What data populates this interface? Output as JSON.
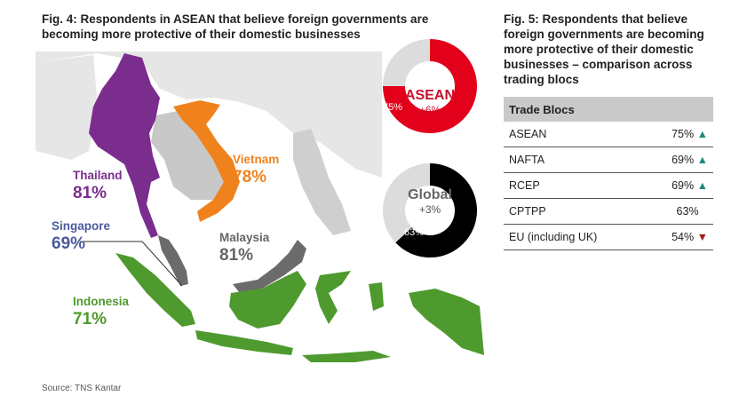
{
  "fig4": {
    "title_line1": "Fig. 4: Respondents in ASEAN that believe foreign governments are",
    "title_line2": "becoming more protective of their domestic businesses",
    "countries": [
      {
        "name": "Thailand",
        "value": "81%",
        "color": "#7b2d8e"
      },
      {
        "name": "Vietnam",
        "value": "78%",
        "color": "#f0821e"
      },
      {
        "name": "Singapore",
        "value": "69%",
        "color": "#4a5a9c"
      },
      {
        "name": "Malaysia",
        "value": "81%",
        "color": "#6b6b6b"
      },
      {
        "name": "Indonesia",
        "value": "71%",
        "color": "#4e9a2e"
      }
    ],
    "donuts": [
      {
        "label": "ASEAN",
        "change": "+6%",
        "value_label": "75%",
        "value": 75,
        "color": "#e2001a"
      },
      {
        "label": "Global",
        "change": "+3%",
        "value_label": "63%",
        "value": 63,
        "color": "#000000"
      }
    ],
    "source": "Source: TNS Kantar"
  },
  "fig5": {
    "title_lines": [
      "Fig. 5: Respondents that believe",
      "foreign governments are becoming",
      "more protective of their domestic",
      "businesses – comparison across",
      "trading blocs"
    ],
    "header": "Trade Blocs",
    "rows": [
      {
        "bloc": "ASEAN",
        "value": "75%",
        "trend": "up"
      },
      {
        "bloc": "NAFTA",
        "value": "69%",
        "trend": "up"
      },
      {
        "bloc": "RCEP",
        "value": "69%",
        "trend": "up"
      },
      {
        "bloc": "CPTPP",
        "value": "63%",
        "trend": "none"
      },
      {
        "bloc": "EU (including UK)",
        "value": "54%",
        "trend": "down"
      }
    ]
  },
  "colors": {
    "land": "#dcdcdc",
    "up": "#1c8a7e",
    "down": "#a51c1c",
    "donut_remainder": "#dcdcdc"
  }
}
